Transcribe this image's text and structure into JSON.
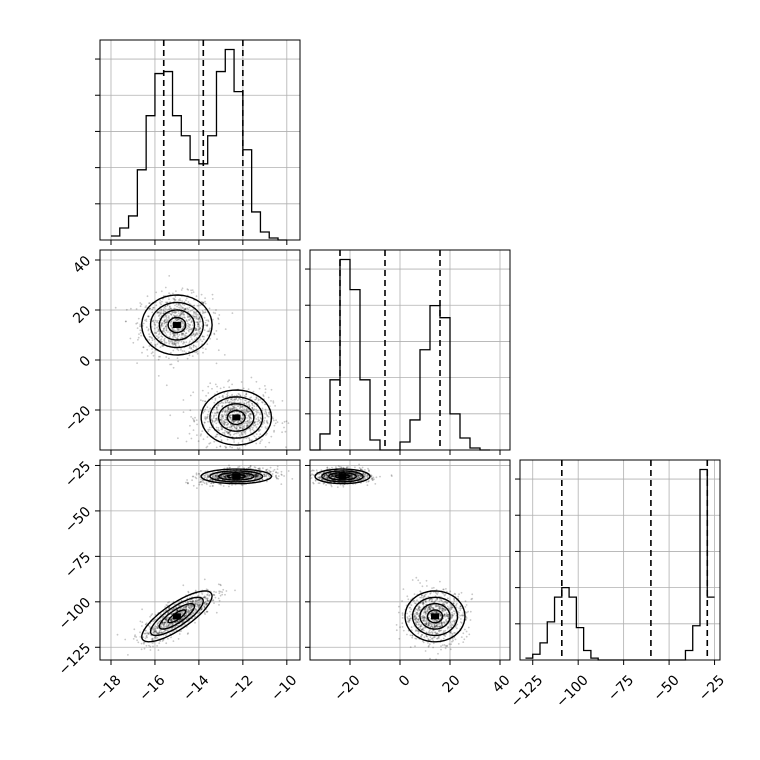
{
  "chart_data": {
    "type": "corner",
    "grid": true,
    "parameters": [
      {
        "range": [
          -18.5,
          -9.4
        ],
        "ticks": [
          -18,
          -16,
          -14,
          -12,
          -10
        ],
        "tick_labels": [
          "−18",
          "−16",
          "−14",
          "−12",
          "−10"
        ],
        "quantiles": [
          -15.6,
          -13.8,
          -12.0
        ],
        "histogram": {
          "edges": [
            -18.0,
            -17.6,
            -17.2,
            -16.8,
            -16.4,
            -16.0,
            -15.6,
            -15.2,
            -14.8,
            -14.4,
            -14.0,
            -13.6,
            -13.2,
            -12.8,
            -12.4,
            -12.0,
            -11.6,
            -11.2,
            -10.8,
            -10.4,
            -10.0
          ],
          "counts": [
            0.02,
            0.06,
            0.12,
            0.35,
            0.62,
            0.83,
            0.84,
            0.62,
            0.52,
            0.4,
            0.38,
            0.52,
            0.84,
            0.95,
            0.74,
            0.45,
            0.14,
            0.04,
            0.01,
            0.0
          ]
        }
      },
      {
        "range": [
          -36,
          44
        ],
        "ticks": [
          -20,
          0,
          20,
          40
        ],
        "tick_labels": [
          "−20",
          "0",
          "20",
          "40"
        ],
        "quantiles": [
          -24,
          -6,
          16
        ],
        "histogram": {
          "edges": [
            -36,
            -32,
            -28,
            -24,
            -20,
            -16,
            -12,
            -8,
            -4,
            0,
            4,
            8,
            12,
            16,
            20,
            24,
            28,
            32,
            36
          ],
          "counts": [
            0.0,
            0.08,
            0.35,
            0.95,
            0.8,
            0.35,
            0.05,
            0.0,
            0.0,
            0.04,
            0.15,
            0.5,
            0.72,
            0.66,
            0.18,
            0.06,
            0.01,
            0.0
          ]
        }
      },
      {
        "range": [
          -132,
          -22
        ],
        "ticks": [
          -125,
          -100,
          -75,
          -50,
          -25
        ],
        "tick_labels": [
          "−125",
          "−100",
          "−75",
          "−50",
          "−25"
        ],
        "quantiles": [
          -109,
          -60,
          -29
        ],
        "histogram": {
          "edges": [
            -129,
            -125,
            -121,
            -117,
            -113,
            -109,
            -105,
            -101,
            -97,
            -93,
            -89,
            -85,
            -81,
            -77,
            -73,
            -69,
            -65,
            -61,
            -57,
            -53,
            -49,
            -45,
            -41,
            -37,
            -33,
            -29,
            -25
          ],
          "counts": [
            0.01,
            0.03,
            0.09,
            0.2,
            0.33,
            0.38,
            0.33,
            0.17,
            0.05,
            0.01,
            0.0,
            0.0,
            0.0,
            0.0,
            0.0,
            0.0,
            0.0,
            0.0,
            0.0,
            0.0,
            0.0,
            0.0,
            0.05,
            0.18,
            1.0,
            0.33
          ]
        }
      }
    ],
    "populations": [
      {
        "weight": 0.5,
        "mean": [
          -15.0,
          14.0,
          -108.0
        ],
        "sd": [
          0.8,
          6.0,
          7.0
        ],
        "rho": 0.8
      },
      {
        "weight": 0.5,
        "mean": [
          -12.3,
          -23.0,
          -31.0
        ],
        "sd": [
          0.8,
          5.5,
          2.0
        ],
        "rho": 0.3
      }
    ],
    "contours": [
      {
        "panel": "1-0",
        "cx": -15.0,
        "cy": 14.0,
        "sx": 0.8,
        "sy": 6.0,
        "rho": 0.0
      },
      {
        "panel": "1-0",
        "cx": -12.3,
        "cy": -23.0,
        "sx": 0.8,
        "sy": 5.5,
        "rho": 0.0
      },
      {
        "panel": "2-0",
        "cx": -12.3,
        "cy": -31.0,
        "sx": 0.8,
        "sy": 2.0,
        "rho": 0.0
      },
      {
        "panel": "2-0",
        "cx": -15.0,
        "cy": -108.0,
        "sx": 0.8,
        "sy": 7.0,
        "rho": 0.8
      },
      {
        "panel": "2-1",
        "cx": -23.0,
        "cy": -31.0,
        "sx": 5.5,
        "sy": 2.0,
        "rho": 0.0
      },
      {
        "panel": "2-1",
        "cx": 14.0,
        "cy": -108.0,
        "sx": 6.0,
        "sy": 7.0,
        "rho": 0.0
      }
    ]
  }
}
